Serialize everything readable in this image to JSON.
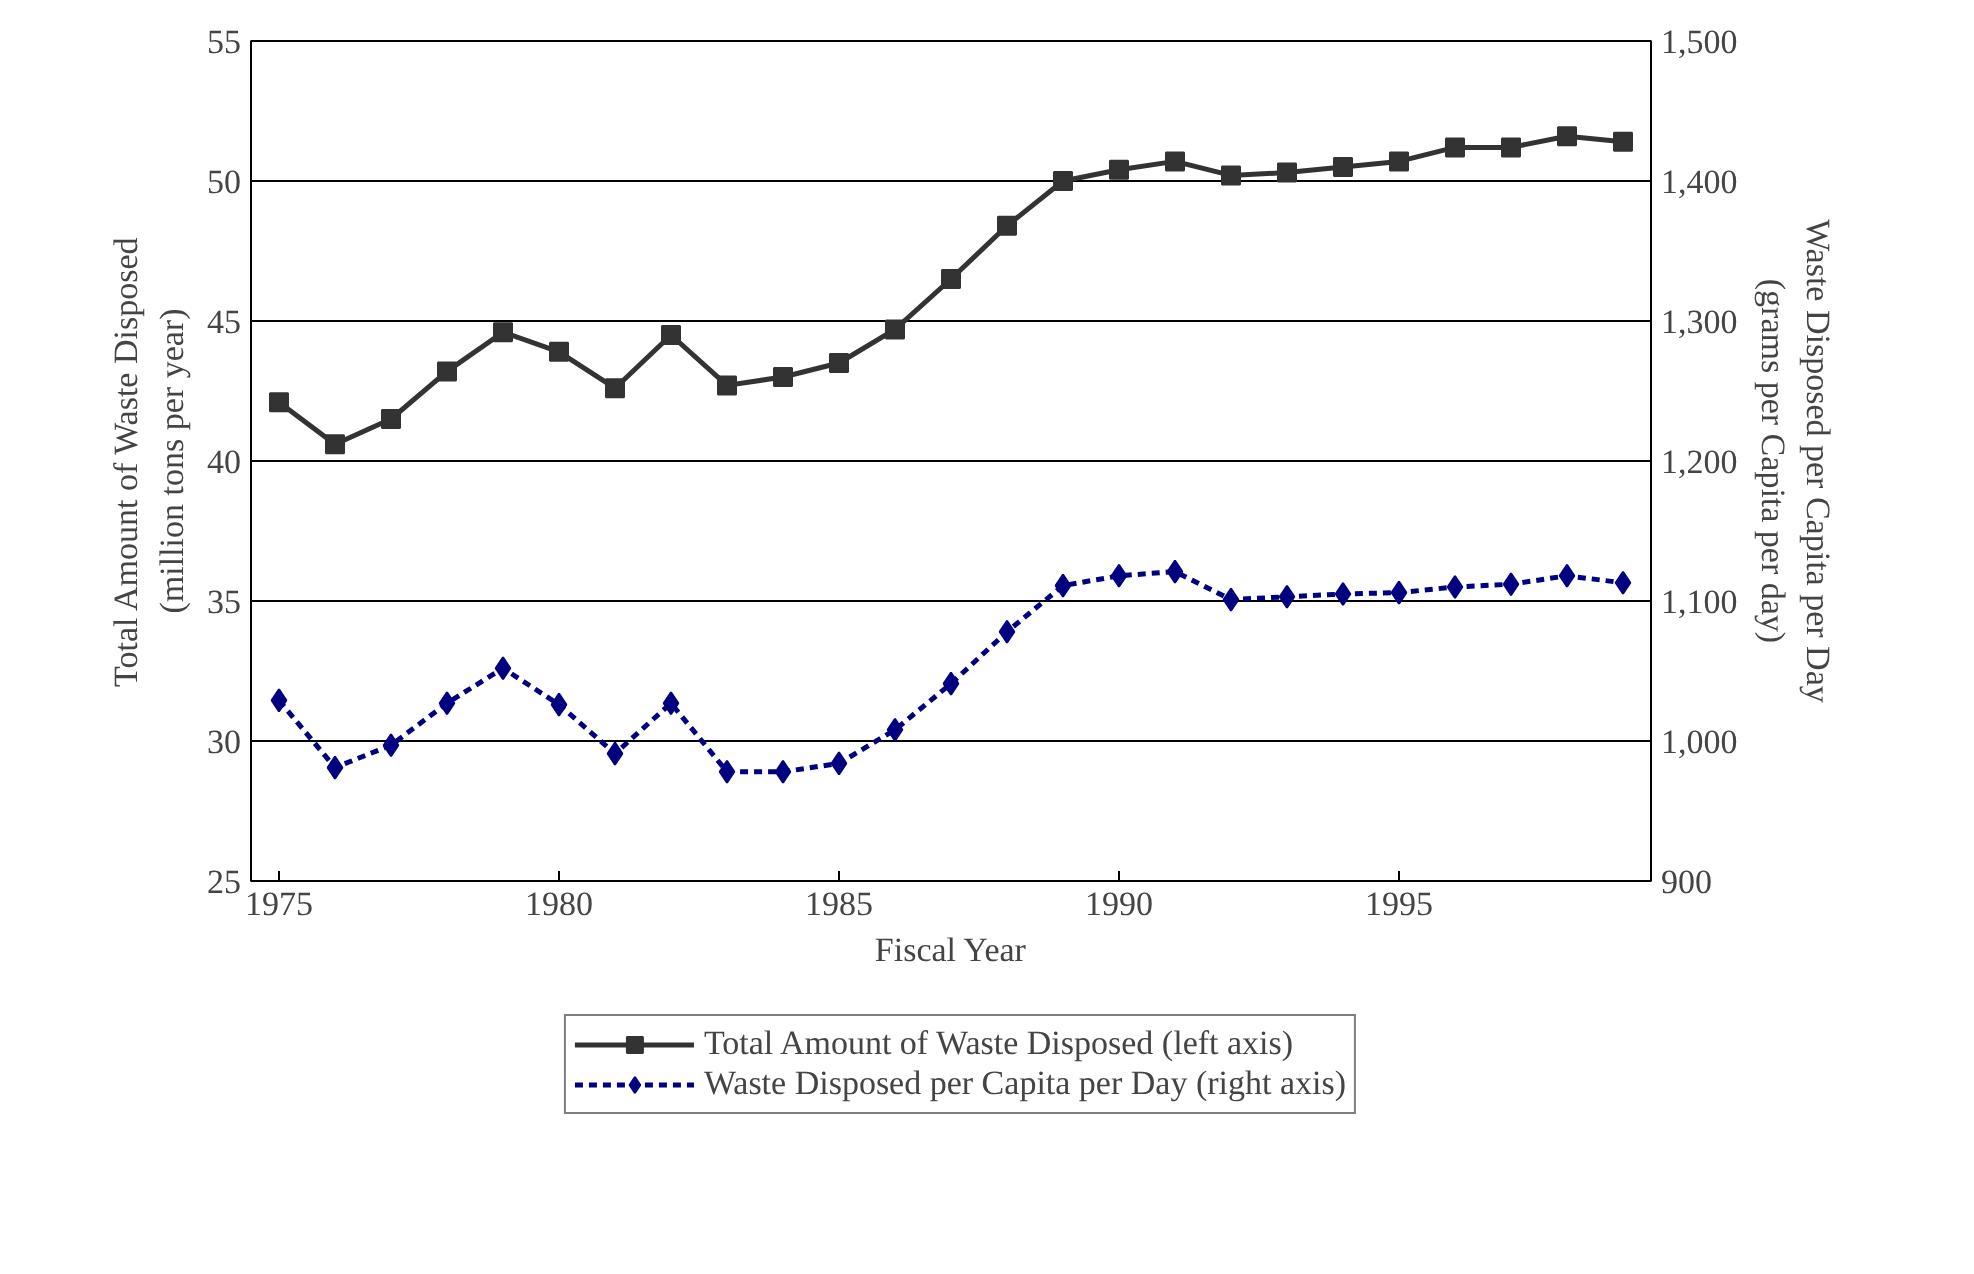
{
  "chart_data": {
    "type": "line",
    "xlabel": "Fiscal Year",
    "ylabel": "Total Amount of Waste Disposed\n(million tons per year)",
    "y2label": "Waste Disposed per Capita per Day\n(grams per Capita per day)",
    "x": [
      1975,
      1976,
      1977,
      1978,
      1979,
      1980,
      1981,
      1982,
      1983,
      1984,
      1985,
      1986,
      1987,
      1988,
      1989,
      1990,
      1991,
      1992,
      1993,
      1994,
      1995,
      1996,
      1997,
      1998,
      1999
    ],
    "xlim": [
      1974.5,
      1999.5
    ],
    "xticks": [
      1975,
      1980,
      1985,
      1990,
      1995
    ],
    "ylim": [
      25,
      55
    ],
    "yticks": [
      25,
      30,
      35,
      40,
      45,
      50,
      55
    ],
    "y2lim": [
      900,
      1500
    ],
    "y2ticks": [
      {
        "value": 900,
        "label": "900"
      },
      {
        "value": 1000,
        "label": "1,000"
      },
      {
        "value": 1100,
        "label": "1,100"
      },
      {
        "value": 1200,
        "label": "1,200"
      },
      {
        "value": 1300,
        "label": "1,300"
      },
      {
        "value": 1400,
        "label": "1,400"
      },
      {
        "value": 1500,
        "label": "1,500"
      }
    ],
    "grid": "y",
    "legend": "bottom",
    "series": [
      {
        "name": "Total Amount of Waste Disposed (left axis)",
        "color": "#333333",
        "marker": "square",
        "line_style": "solid",
        "values": [
          42.1,
          40.6,
          41.5,
          43.2,
          44.6,
          43.9,
          42.6,
          44.5,
          42.7,
          43.0,
          43.5,
          44.7,
          46.5,
          48.4,
          50.0,
          50.4,
          50.7,
          50.2,
          50.3,
          50.5,
          50.7,
          51.2,
          51.2,
          51.6,
          51.4
        ]
      },
      {
        "name": "Waste Disposed per Capita per Day (right axis)",
        "color": "#000080",
        "marker": "diamond",
        "line_style": "dashed",
        "axis": "y2",
        "values": [
          1029,
          981,
          997,
          1027,
          1052,
          1026,
          991,
          1027,
          978,
          978,
          984,
          1008,
          1041,
          1078,
          1111,
          1118,
          1121,
          1101,
          1103,
          1105,
          1106,
          1110,
          1112,
          1118,
          1113
        ]
      }
    ]
  }
}
